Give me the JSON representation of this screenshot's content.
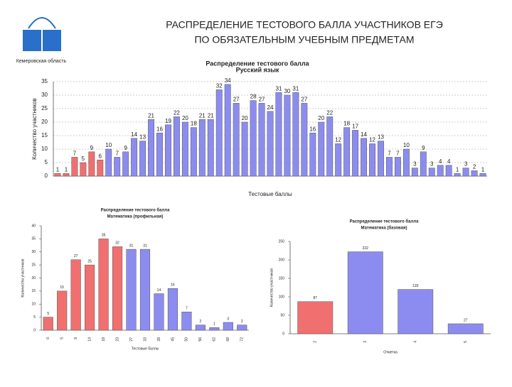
{
  "header": {
    "title_lines": [
      "РАСПРЕДЕЛЕНИЕ ТЕСТОВОГО БАЛЛА УЧАСТНИКОВ ЕГЭ",
      "ПО ОБЯЗАТЕЛЬНЫМ УЧЕБНЫМ ПРЕДМЕТАМ"
    ],
    "logo_text": "Кемеровская область"
  },
  "chart_data": [
    {
      "type": "bar",
      "title": "Распределение тестового балла",
      "subtitle": "Русский язык",
      "y_label": "Количество участников",
      "x_label": "Тестовые баллы",
      "categories": [
        null,
        null,
        null,
        null,
        null,
        null,
        null,
        null,
        null,
        null,
        null,
        null,
        null,
        null,
        null,
        null,
        null,
        null,
        null,
        null,
        null,
        null,
        null,
        null,
        null,
        null,
        null,
        null,
        null,
        null,
        null,
        null,
        null,
        null,
        null,
        null,
        null,
        null,
        null,
        null,
        null,
        null,
        null,
        null,
        null,
        null,
        null,
        null,
        null,
        null,
        null
      ],
      "values": [
        1,
        1,
        7,
        5,
        9,
        6,
        10,
        7,
        9,
        14,
        13,
        21,
        16,
        19,
        22,
        20,
        18,
        21,
        21,
        32,
        34,
        27,
        20,
        28,
        27,
        24,
        31,
        30,
        31,
        27,
        16,
        20,
        22,
        12,
        18,
        17,
        14,
        12,
        13,
        7,
        7,
        10,
        3,
        9,
        3,
        4,
        4,
        1,
        3,
        2,
        1
      ],
      "colors": [
        "#f07070",
        "#f07070",
        "#f07070",
        "#f07070",
        "#f07070",
        "#f07070",
        "#8c8cf0",
        "#8c8cf0",
        "#8c8cf0",
        "#8c8cf0",
        "#8c8cf0",
        "#8c8cf0",
        "#8c8cf0",
        "#8c8cf0",
        "#8c8cf0",
        "#8c8cf0",
        "#8c8cf0",
        "#8c8cf0",
        "#8c8cf0",
        "#8c8cf0",
        "#8c8cf0",
        "#8c8cf0",
        "#8c8cf0",
        "#8c8cf0",
        "#8c8cf0",
        "#8c8cf0",
        "#8c8cf0",
        "#8c8cf0",
        "#8c8cf0",
        "#8c8cf0",
        "#8c8cf0",
        "#8c8cf0",
        "#8c8cf0",
        "#8c8cf0",
        "#8c8cf0",
        "#8c8cf0",
        "#8c8cf0",
        "#8c8cf0",
        "#8c8cf0",
        "#8c8cf0",
        "#8c8cf0",
        "#8c8cf0",
        "#8c8cf0",
        "#8c8cf0",
        "#8c8cf0",
        "#8c8cf0",
        "#8c8cf0",
        "#8c8cf0",
        "#8c8cf0",
        "#8c8cf0",
        "#8c8cf0"
      ],
      "ylim": [
        0,
        35
      ],
      "yticks": [
        0,
        5,
        10,
        15,
        20,
        25,
        30,
        35
      ],
      "grid": true
    },
    {
      "type": "bar",
      "title": "Распределение тестового балла",
      "subtitle": "Математика (профильная)",
      "y_label": "Количество участников",
      "x_label": "Тестовые баллы",
      "categories": [
        "0",
        "5",
        "9",
        "14",
        "18",
        "23",
        "27",
        "33",
        "39",
        "45",
        "50",
        "56",
        "62",
        "68",
        "72"
      ],
      "values": [
        5,
        15,
        27,
        25,
        35,
        32,
        31,
        31,
        14,
        16,
        7,
        2,
        1,
        3,
        2
      ],
      "colors": [
        "#f07070",
        "#f07070",
        "#f07070",
        "#f07070",
        "#f07070",
        "#f07070",
        "#8c8cf0",
        "#8c8cf0",
        "#8c8cf0",
        "#8c8cf0",
        "#8c8cf0",
        "#8c8cf0",
        "#8c8cf0",
        "#8c8cf0",
        "#8c8cf0"
      ],
      "ylim": [
        0,
        40
      ],
      "yticks": [
        0,
        5,
        10,
        15,
        20,
        25,
        30,
        35,
        40
      ],
      "grid": false
    },
    {
      "type": "bar",
      "title": "Распределение тестового балла",
      "subtitle": "Математика (базовая)",
      "y_label": "Количество участников",
      "x_label": "Отметка",
      "categories": [
        "2",
        "3",
        "4",
        "5"
      ],
      "values": [
        87,
        222,
        120,
        27
      ],
      "colors": [
        "#f07070",
        "#8c8cf0",
        "#8c8cf0",
        "#8c8cf0"
      ],
      "ylim": [
        0,
        250
      ],
      "yticks": [
        0,
        50,
        100,
        150,
        200,
        250
      ],
      "grid": false
    }
  ]
}
